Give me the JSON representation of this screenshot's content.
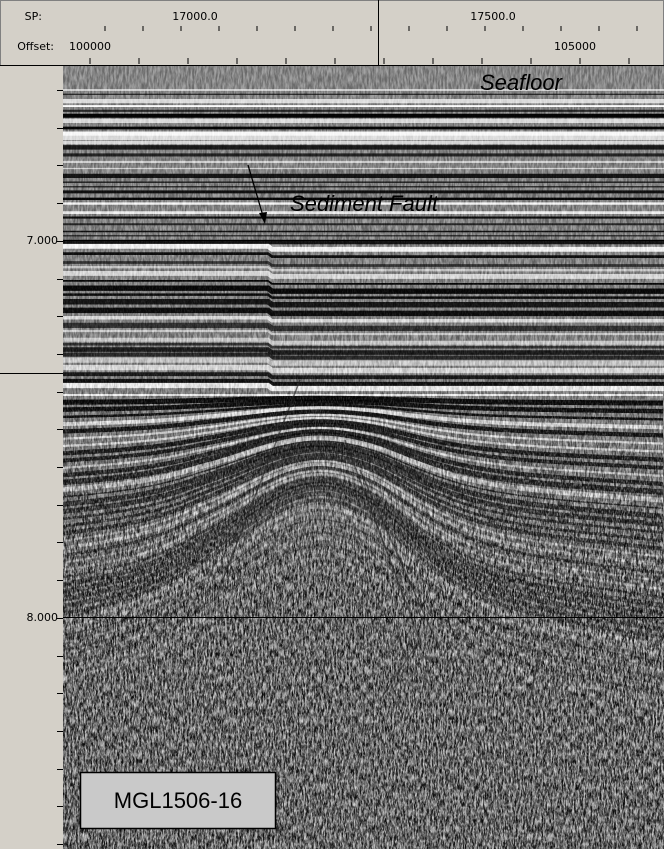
{
  "header": {
    "sp_label": "SP:",
    "offset_label": "Offset:",
    "sp_ticks": [
      "17000.0",
      "17500.0"
    ],
    "offset_ticks": [
      "100000",
      "105000"
    ]
  },
  "time_axis": {
    "ticks": [
      "7.000",
      "8.000"
    ]
  },
  "annotations": {
    "seafloor": "Seafloor",
    "sediment_fault": "Sediment Fault",
    "line_id": "MGL1506-16"
  }
}
